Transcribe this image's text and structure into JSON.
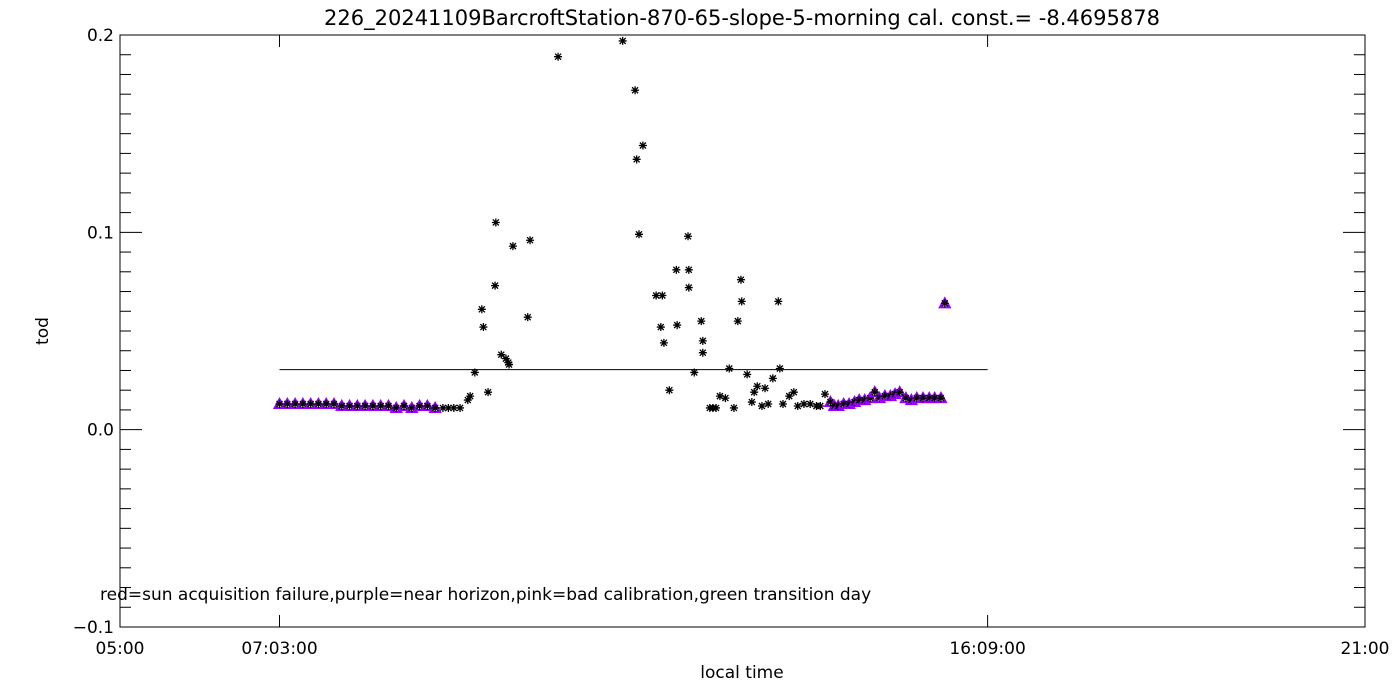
{
  "chart_data": {
    "type": "scatter",
    "title": "226_20241109BarcroftStation-870-65-slope-5-morning cal. const.= -8.4695878",
    "xlabel": "local time",
    "ylabel": "tod",
    "xlim_hours": [
      5,
      21
    ],
    "ylim": [
      -0.1,
      0.2
    ],
    "x_tick_labels": [
      {
        "hours": 5,
        "label": "05:00"
      },
      {
        "hours": 7.05,
        "label": "07:03:00"
      },
      {
        "hours": 16.15,
        "label": "16:09:00"
      },
      {
        "hours": 21,
        "label": "21:00"
      }
    ],
    "y_tick_labels": [
      {
        "value": 0.2,
        "label": "0.2"
      },
      {
        "value": 0.1,
        "label": "0.1"
      },
      {
        "value": 0.0,
        "label": "0.0"
      },
      {
        "value": -0.1,
        "label": "−0.1"
      }
    ],
    "annotation": "red=sun acquisition failure,purple=near horizon,pink=bad calibration,green transition day",
    "reference_line": {
      "value": 0.0304,
      "x_start_hours": 7.05,
      "x_end_hours": 16.15
    },
    "colors": {
      "normal": "#000000",
      "purple": "#9900ff"
    },
    "points_purple": [
      [
        7.05,
        0.013
      ],
      [
        7.15,
        0.013
      ],
      [
        7.25,
        0.013
      ],
      [
        7.35,
        0.013
      ],
      [
        7.45,
        0.013
      ],
      [
        7.55,
        0.013
      ],
      [
        7.65,
        0.013
      ],
      [
        7.75,
        0.013
      ],
      [
        7.85,
        0.012
      ],
      [
        7.95,
        0.012
      ],
      [
        8.05,
        0.012
      ],
      [
        8.15,
        0.012
      ],
      [
        8.25,
        0.012
      ],
      [
        8.35,
        0.012
      ],
      [
        8.45,
        0.012
      ],
      [
        8.55,
        0.011
      ],
      [
        8.65,
        0.012
      ],
      [
        8.75,
        0.011
      ],
      [
        8.85,
        0.012
      ],
      [
        8.95,
        0.012
      ],
      [
        9.05,
        0.011
      ],
      [
        14.13,
        0.014
      ],
      [
        14.18,
        0.012
      ],
      [
        14.23,
        0.012
      ],
      [
        14.3,
        0.013
      ],
      [
        14.37,
        0.013
      ],
      [
        14.44,
        0.014
      ],
      [
        14.5,
        0.015
      ],
      [
        14.57,
        0.015
      ],
      [
        14.64,
        0.016
      ],
      [
        14.7,
        0.019
      ],
      [
        14.76,
        0.016
      ],
      [
        14.83,
        0.017
      ],
      [
        14.9,
        0.017
      ],
      [
        14.96,
        0.018
      ],
      [
        15.02,
        0.019
      ],
      [
        15.1,
        0.016
      ],
      [
        15.17,
        0.015
      ],
      [
        15.24,
        0.016
      ],
      [
        15.32,
        0.016
      ],
      [
        15.4,
        0.016
      ],
      [
        15.47,
        0.016
      ],
      [
        15.55,
        0.016
      ],
      [
        15.6,
        0.064
      ]
    ],
    "points_normal": [
      [
        9.15,
        0.011
      ],
      [
        9.22,
        0.011
      ],
      [
        9.29,
        0.011
      ],
      [
        9.37,
        0.011
      ],
      [
        9.47,
        0.015
      ],
      [
        9.5,
        0.017
      ],
      [
        9.56,
        0.029
      ],
      [
        9.65,
        0.061
      ],
      [
        9.67,
        0.052
      ],
      [
        9.73,
        0.019
      ],
      [
        9.82,
        0.073
      ],
      [
        9.83,
        0.105
      ],
      [
        9.9,
        0.038
      ],
      [
        9.96,
        0.036
      ],
      [
        9.99,
        0.034
      ],
      [
        10.0,
        0.033
      ],
      [
        10.05,
        0.093
      ],
      [
        10.24,
        0.057
      ],
      [
        10.27,
        0.096
      ],
      [
        10.63,
        0.189
      ],
      [
        11.46,
        0.197
      ],
      [
        11.62,
        0.172
      ],
      [
        11.64,
        0.137
      ],
      [
        11.67,
        0.099
      ],
      [
        11.72,
        0.144
      ],
      [
        11.89,
        0.068
      ],
      [
        11.97,
        0.068
      ],
      [
        11.95,
        0.052
      ],
      [
        11.99,
        0.044
      ],
      [
        12.06,
        0.02
      ],
      [
        12.15,
        0.081
      ],
      [
        12.16,
        0.053
      ],
      [
        12.3,
        0.098
      ],
      [
        12.31,
        0.081
      ],
      [
        12.31,
        0.072
      ],
      [
        12.38,
        0.029
      ],
      [
        12.47,
        0.055
      ],
      [
        12.49,
        0.045
      ],
      [
        12.49,
        0.039
      ],
      [
        12.58,
        0.011
      ],
      [
        12.62,
        0.011
      ],
      [
        12.66,
        0.011
      ],
      [
        12.71,
        0.017
      ],
      [
        12.78,
        0.016
      ],
      [
        12.83,
        0.031
      ],
      [
        12.89,
        0.011
      ],
      [
        12.94,
        0.055
      ],
      [
        12.98,
        0.076
      ],
      [
        12.99,
        0.065
      ],
      [
        13.06,
        0.028
      ],
      [
        13.12,
        0.014
      ],
      [
        13.15,
        0.019
      ],
      [
        13.19,
        0.022
      ],
      [
        13.25,
        0.012
      ],
      [
        13.29,
        0.021
      ],
      [
        13.33,
        0.013
      ],
      [
        13.39,
        0.026
      ],
      [
        13.46,
        0.065
      ],
      [
        13.48,
        0.031
      ],
      [
        13.52,
        0.013
      ],
      [
        13.6,
        0.017
      ],
      [
        13.66,
        0.019
      ],
      [
        13.71,
        0.012
      ],
      [
        13.79,
        0.013
      ],
      [
        13.87,
        0.013
      ],
      [
        13.95,
        0.012
      ],
      [
        14.0,
        0.012
      ],
      [
        14.06,
        0.018
      ]
    ]
  }
}
